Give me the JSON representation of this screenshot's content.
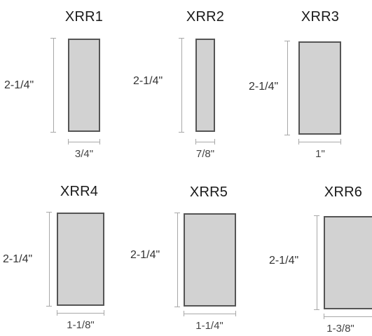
{
  "items": [
    {
      "title": "XRR1",
      "height": "2-1/4\"",
      "width": "3/4\""
    },
    {
      "title": "XRR2",
      "height": "2-1/4\"",
      "width": "7/8\""
    },
    {
      "title": "XRR3",
      "height": "2-1/4\"",
      "width": "1\""
    },
    {
      "title": "XRR4",
      "height": "2-1/4\"",
      "width": "1-1/8\""
    },
    {
      "title": "XRR5",
      "height": "2-1/4\"",
      "width": "1-1/4\""
    },
    {
      "title": "XRR6",
      "height": "2-1/4\"",
      "width": "1-3/8\""
    }
  ]
}
